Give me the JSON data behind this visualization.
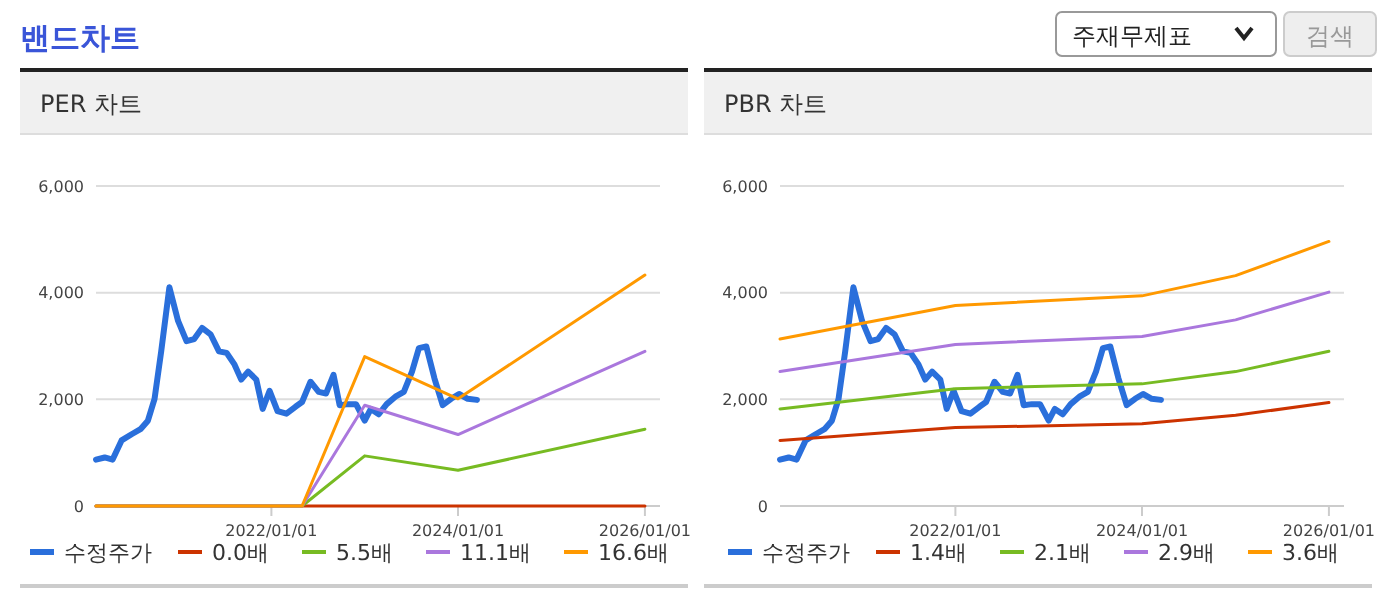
{
  "chart_data": [
    {
      "type": "other",
      "title": "밴드차트",
      "annotations": [
        "주재무제표",
        "검색"
      ]
    },
    {
      "type": "line",
      "title": "PER 차트",
      "xlim": [
        "2020-02-15",
        "2026-03-01"
      ],
      "ylim": [
        0,
        6000
      ],
      "yticks": [
        {
          "value": 0,
          "label": "0"
        },
        {
          "value": 2000,
          "label": "2,000"
        },
        {
          "value": 4000,
          "label": "4,000"
        },
        {
          "value": 6000,
          "label": "6,000"
        }
      ],
      "xticks": [
        {
          "value": "2022-01-01",
          "label": "2022/01/01"
        },
        {
          "value": "2024-01-01",
          "label": "2024/01/01"
        },
        {
          "value": "2026-01-01",
          "label": "2026/01/01"
        }
      ],
      "grid": "y",
      "legend": "bottom",
      "series": [
        {
          "name": "수정주가",
          "color": "#2a6fdb",
          "x": [
            "2020-02-15",
            "2020-03-20",
            "2020-04-20",
            "2020-05-25",
            "2020-07-05",
            "2020-08-07",
            "2020-09-05",
            "2020-10-01",
            "2020-10-27",
            "2020-11-28",
            "2021-01-01",
            "2021-02-03",
            "2021-03-05",
            "2021-04-05",
            "2021-05-08",
            "2021-06-10",
            "2021-07-10",
            "2021-08-10",
            "2021-09-05",
            "2021-10-02",
            "2021-11-03",
            "2021-11-28",
            "2021-12-25",
            "2022-01-25",
            "2022-03-01",
            "2022-04-05",
            "2022-05-01",
            "2022-06-03",
            "2022-07-05",
            "2022-08-03",
            "2022-09-01",
            "2022-09-25",
            "2022-10-27",
            "2022-11-28",
            "2023-01-01",
            "2023-01-25",
            "2023-02-25",
            "2023-03-28",
            "2023-05-01",
            "2023-06-03",
            "2023-07-05",
            "2023-08-01",
            "2023-08-30",
            "2023-10-01",
            "2023-11-02",
            "2023-12-05",
            "2024-01-05",
            "2024-02-08",
            "2024-03-15"
          ],
          "values": [
            870,
            910,
            870,
            1230,
            1350,
            1440,
            1600,
            2010,
            2900,
            4100,
            3470,
            3090,
            3130,
            3340,
            3220,
            2900,
            2870,
            2650,
            2370,
            2520,
            2370,
            1820,
            2160,
            1780,
            1730,
            1860,
            1950,
            2330,
            2140,
            2110,
            2460,
            1890,
            1910,
            1910,
            1600,
            1820,
            1720,
            1910,
            2050,
            2140,
            2520,
            2960,
            2990,
            2390,
            1890,
            2010,
            2100,
            2010,
            1990
          ]
        },
        {
          "name": "0.0배",
          "color": "#cc3300",
          "x": [
            "2020-02-15",
            "2022-05-01",
            "2023-01-01",
            "2024-01-01",
            "2026-01-01"
          ],
          "values": [
            0,
            0,
            0,
            0,
            0
          ]
        },
        {
          "name": "5.5배",
          "color": "#77bb22",
          "x": [
            "2020-02-15",
            "2022-05-01",
            "2023-01-01",
            "2024-01-01",
            "2026-01-01"
          ],
          "values": [
            0,
            0,
            940,
            670,
            1440
          ]
        },
        {
          "name": "11.1배",
          "color": "#aa77dd",
          "x": [
            "2020-02-15",
            "2022-05-01",
            "2023-01-01",
            "2024-01-01",
            "2026-01-01"
          ],
          "values": [
            0,
            0,
            1890,
            1340,
            2900
          ]
        },
        {
          "name": "16.6배",
          "color": "#ff9900",
          "x": [
            "2020-02-15",
            "2022-05-01",
            "2023-01-01",
            "2024-01-01",
            "2026-01-01"
          ],
          "values": [
            0,
            0,
            2800,
            2010,
            4330
          ]
        }
      ]
    },
    {
      "type": "line",
      "title": "PBR 차트",
      "xlim": [
        "2020-02-15",
        "2026-03-01"
      ],
      "ylim": [
        0,
        6000
      ],
      "yticks": [
        {
          "value": 0,
          "label": "0"
        },
        {
          "value": 2000,
          "label": "2,000"
        },
        {
          "value": 4000,
          "label": "4,000"
        },
        {
          "value": 6000,
          "label": "6,000"
        }
      ],
      "xticks": [
        {
          "value": "2022-01-01",
          "label": "2022/01/01"
        },
        {
          "value": "2024-01-01",
          "label": "2024/01/01"
        },
        {
          "value": "2026-01-01",
          "label": "2026/01/01"
        }
      ],
      "grid": "y",
      "legend": "bottom",
      "series": [
        {
          "name": "수정주가",
          "color": "#2a6fdb",
          "x": [
            "2020-02-15",
            "2020-03-20",
            "2020-04-20",
            "2020-05-25",
            "2020-07-05",
            "2020-08-07",
            "2020-09-05",
            "2020-10-01",
            "2020-10-27",
            "2020-11-28",
            "2021-01-01",
            "2021-02-03",
            "2021-03-05",
            "2021-04-05",
            "2021-05-08",
            "2021-06-10",
            "2021-07-10",
            "2021-08-10",
            "2021-09-05",
            "2021-10-02",
            "2021-11-03",
            "2021-11-28",
            "2021-12-25",
            "2022-01-25",
            "2022-03-01",
            "2022-04-05",
            "2022-05-01",
            "2022-06-03",
            "2022-07-05",
            "2022-08-03",
            "2022-09-01",
            "2022-09-25",
            "2022-10-27",
            "2022-11-28",
            "2023-01-01",
            "2023-01-25",
            "2023-02-25",
            "2023-03-28",
            "2023-05-01",
            "2023-06-03",
            "2023-07-05",
            "2023-08-01",
            "2023-08-30",
            "2023-10-01",
            "2023-11-02",
            "2023-12-05",
            "2024-01-05",
            "2024-02-08",
            "2024-03-15"
          ],
          "values": [
            870,
            910,
            870,
            1230,
            1350,
            1440,
            1600,
            2010,
            2900,
            4100,
            3470,
            3090,
            3130,
            3340,
            3220,
            2900,
            2870,
            2650,
            2370,
            2520,
            2370,
            1820,
            2160,
            1780,
            1730,
            1860,
            1950,
            2330,
            2140,
            2110,
            2460,
            1890,
            1910,
            1910,
            1600,
            1820,
            1720,
            1910,
            2050,
            2140,
            2520,
            2960,
            2990,
            2390,
            1890,
            2010,
            2100,
            2010,
            1990
          ]
        },
        {
          "name": "1.4배",
          "color": "#cc3300",
          "x": [
            "2020-02-15",
            "2022-01-01",
            "2024-01-01",
            "2025-01-01",
            "2026-01-01"
          ],
          "values": [
            1230,
            1470,
            1540,
            1700,
            1940
          ]
        },
        {
          "name": "2.1배",
          "color": "#77bb22",
          "x": [
            "2020-02-15",
            "2022-01-01",
            "2024-01-01",
            "2025-01-01",
            "2026-01-01"
          ],
          "values": [
            1820,
            2200,
            2290,
            2520,
            2900
          ]
        },
        {
          "name": "2.9배",
          "color": "#aa77dd",
          "x": [
            "2020-02-15",
            "2022-01-01",
            "2024-01-01",
            "2025-01-01",
            "2026-01-01"
          ],
          "values": [
            2520,
            3030,
            3180,
            3490,
            4010
          ]
        },
        {
          "name": "3.6배",
          "color": "#ff9900",
          "x": [
            "2020-02-15",
            "2022-01-01",
            "2024-01-01",
            "2025-01-01",
            "2026-01-01"
          ],
          "values": [
            3130,
            3760,
            3940,
            4320,
            4960
          ]
        }
      ]
    }
  ]
}
